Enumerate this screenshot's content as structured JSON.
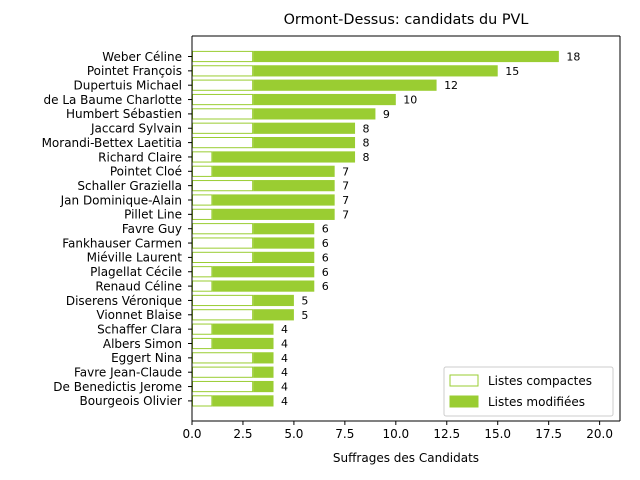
{
  "chart_data": {
    "type": "bar",
    "orientation": "horizontal",
    "stacked": true,
    "title": "Ormont-Dessus: candidats du PVL",
    "xlabel": "Suffrages des Candidats",
    "ylabel": "",
    "xlim": [
      0,
      21
    ],
    "xticks": [
      "0.0",
      "2.5",
      "5.0",
      "7.5",
      "10.0",
      "12.5",
      "15.0",
      "17.5",
      "20.0"
    ],
    "xtick_values": [
      0,
      2.5,
      5,
      7.5,
      10,
      12.5,
      15,
      17.5,
      20
    ],
    "grid": false,
    "legend_position": "lower-right",
    "colors": {
      "accent": "#9acd32",
      "text": "#000000",
      "axis": "#000000",
      "legend_border": "#cccccc"
    },
    "categories": [
      "Weber Céline",
      "Pointet François",
      "Dupertuis Michael",
      "de La Baume Charlotte",
      "Humbert Sébastien",
      "Jaccard Sylvain",
      "Morandi-Bettex Laetitia",
      "Richard Claire",
      "Pointet Cloé",
      "Schaller Graziella",
      "Jan Dominique-Alain",
      "Pillet Line",
      "Favre Guy",
      "Fankhauser Carmen",
      "Miéville Laurent",
      "Plagellat Cécile",
      "Renaud Céline",
      "Diserens Véronique",
      "Vionnet Blaise",
      "Schaffer Clara",
      "Albers Simon",
      "Eggert Nina",
      "Favre Jean-Claude",
      "De Benedictis Jerome",
      "Bourgeois Olivier"
    ],
    "series": [
      {
        "name": "Listes compactes",
        "style": "outline",
        "values": [
          3,
          3,
          3,
          3,
          3,
          3,
          3,
          1,
          1,
          3,
          1,
          1,
          3,
          3,
          3,
          1,
          1,
          3,
          3,
          1,
          1,
          3,
          3,
          3,
          1
        ]
      },
      {
        "name": "Listes modifiées",
        "style": "filled",
        "values": [
          15,
          12,
          9,
          7,
          6,
          5,
          5,
          7,
          6,
          4,
          6,
          6,
          3,
          3,
          3,
          5,
          5,
          2,
          2,
          3,
          3,
          1,
          1,
          1,
          3
        ]
      }
    ],
    "totals": [
      "18",
      "15",
      "12",
      "10",
      "9",
      "8",
      "8",
      "8",
      "7",
      "7",
      "7",
      "7",
      "6",
      "6",
      "6",
      "6",
      "6",
      "5",
      "5",
      "4",
      "4",
      "4",
      "4",
      "4",
      "4"
    ]
  }
}
